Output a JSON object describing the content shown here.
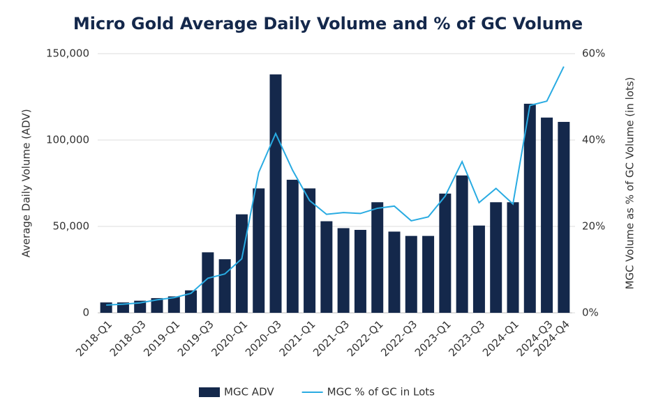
{
  "chart_data": {
    "type": "bar_line",
    "title": "Micro Gold Average Daily Volume and % of GC Volume",
    "y_label": "Average Daily Volume (ADV)",
    "y2_label": "MGC Volume as % of GC Volume (in lots)",
    "categories": [
      "2018-Q1",
      null,
      "2018-Q3",
      null,
      "2019-Q1",
      null,
      "2019-Q3",
      null,
      "2020-Q1",
      null,
      "2020-Q3",
      null,
      "2021-Q1",
      null,
      "2021-Q3",
      null,
      "2022-Q1",
      null,
      "2022-Q3",
      null,
      "2023-Q1",
      null,
      "2023-Q3",
      null,
      "2024-Q1",
      null,
      "2024-Q3",
      "2024-Q4"
    ],
    "series": [
      {
        "name": "MGC ADV",
        "type": "bar",
        "color": "#14284b",
        "values": [
          6000,
          6000,
          7000,
          8500,
          9500,
          13000,
          35000,
          31000,
          57000,
          72000,
          138000,
          77000,
          72000,
          53000,
          49000,
          48000,
          64000,
          47000,
          44500,
          44500,
          69000,
          79500,
          50500,
          64000,
          64000,
          121000,
          113000,
          110500
        ]
      },
      {
        "name": "MGC % of GC in Lots",
        "type": "line",
        "axis": "y2",
        "color": "#29abe2",
        "values": [
          1.8,
          2,
          2.3,
          3,
          3.5,
          4.5,
          8,
          9,
          12.5,
          32.5,
          41.5,
          33,
          26,
          22.8,
          23.2,
          23,
          24.2,
          24.7,
          21.3,
          22.2,
          27,
          35,
          25.5,
          28.8,
          25.2,
          48,
          49,
          57
        ]
      }
    ],
    "ylim": [
      0,
      150000
    ],
    "yticks": [
      0,
      {
        "value": 50000,
        "label": "50,000"
      },
      {
        "value": 100000,
        "label": "100,000"
      },
      {
        "value": 150000,
        "label": "150,000"
      }
    ],
    "y2lim": [
      0,
      60
    ],
    "y2ticks": [
      {
        "value": 0,
        "label": "0%"
      },
      {
        "value": 20,
        "label": "20%"
      },
      {
        "value": 40,
        "label": "40%"
      },
      {
        "value": 60,
        "label": "60%"
      }
    ],
    "grid": true,
    "legend": "bottom"
  }
}
